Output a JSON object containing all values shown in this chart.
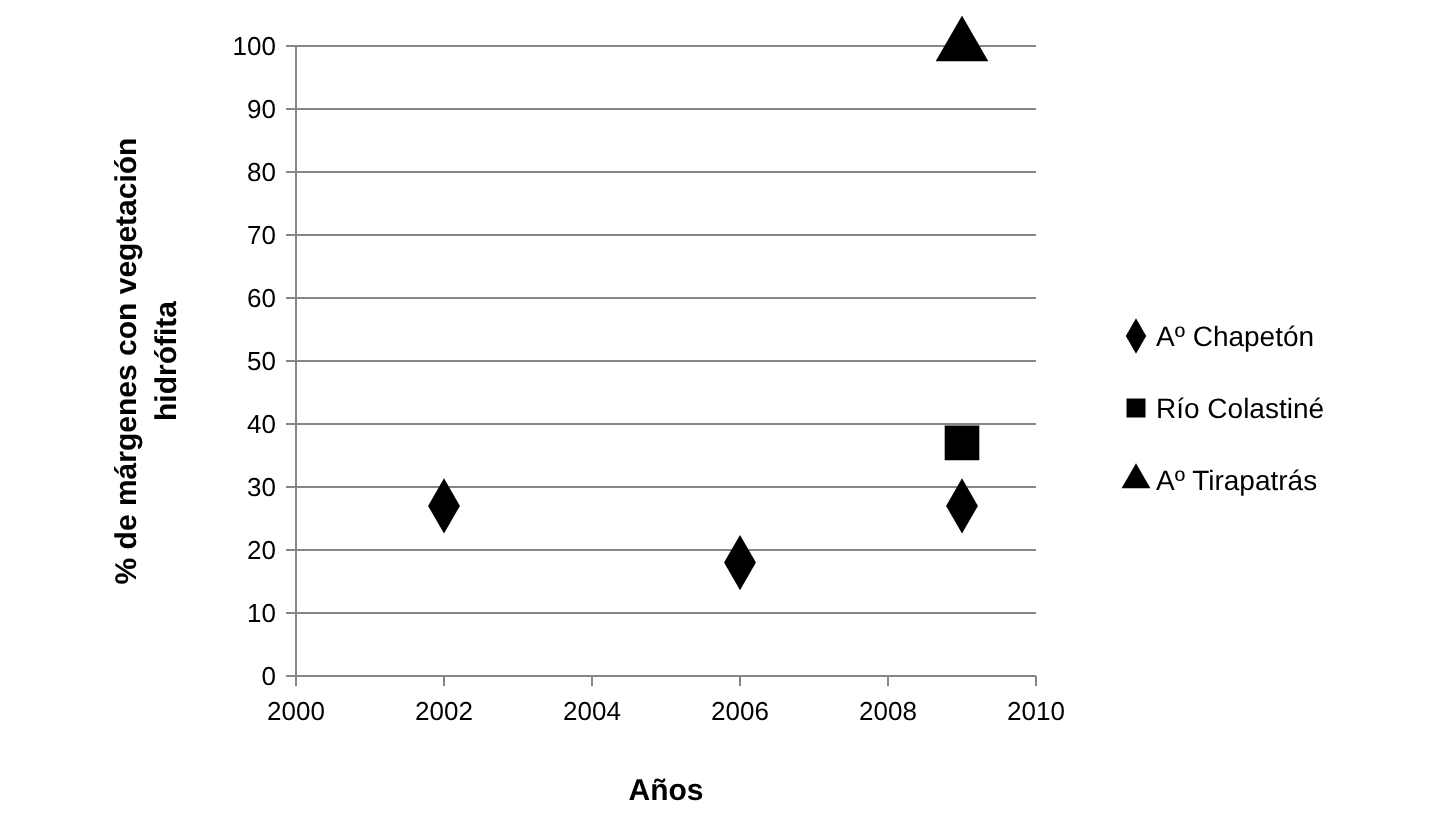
{
  "chart_data": {
    "type": "scatter",
    "xlabel": "Años",
    "ylabel": "% de márgenes con vegetación hidrófita",
    "xlim": [
      2000,
      2010
    ],
    "xticks": [
      2000,
      2002,
      2004,
      2006,
      2008,
      2010
    ],
    "ylim": [
      0,
      100
    ],
    "yticks": [
      0,
      10,
      20,
      30,
      40,
      50,
      60,
      70,
      80,
      90,
      100
    ],
    "grid": "y",
    "legend": "right",
    "series": [
      {
        "name": "Aº Chapetón",
        "color": "#000000",
        "marker": "diamond",
        "x": [
          2002,
          2006,
          2009
        ],
        "values": [
          27,
          18,
          27
        ]
      },
      {
        "name": "Río Colastiné",
        "color": "#000000",
        "marker": "square",
        "x": [
          2009
        ],
        "values": [
          37
        ]
      },
      {
        "name": "Aº Tirapatrás",
        "color": "#000000",
        "marker": "triangle",
        "x": [
          2009
        ],
        "values": [
          100
        ]
      }
    ]
  }
}
